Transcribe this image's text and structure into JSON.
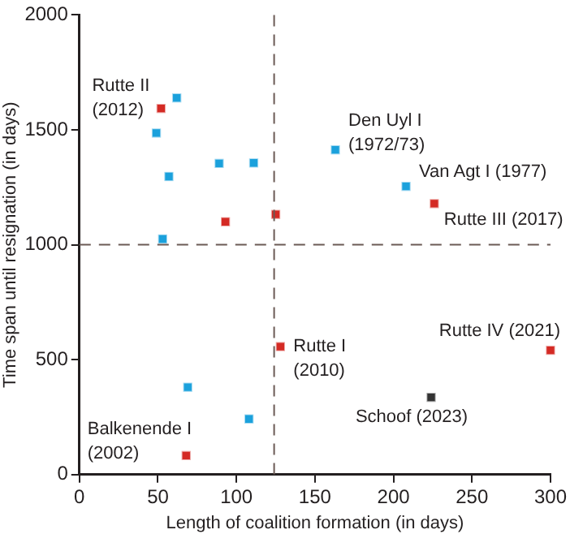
{
  "chart_data": {
    "type": "scatter",
    "xlabel": "Length of coalition formation (in days)",
    "ylabel": "Time span until resignation (in days)",
    "xlim": [
      0,
      300
    ],
    "xticks": [
      0,
      50,
      100,
      150,
      200,
      250,
      300
    ],
    "ylim": [
      0,
      2000
    ],
    "yticks": [
      0,
      500,
      1000,
      1500,
      2000
    ],
    "grid": false,
    "legend": false,
    "marker": "square",
    "series": [
      {
        "color": "#1ba1dc",
        "x": [
          62,
          49,
          57,
          89,
          111,
          53,
          163,
          208,
          69,
          108
        ],
        "values": [
          1639,
          1486,
          1297,
          1354,
          1356,
          1025,
          1413,
          1254,
          380,
          242
        ]
      },
      {
        "color": "#d42a24",
        "x": [
          52,
          93,
          125,
          226,
          128,
          300,
          68
        ],
        "values": [
          1593,
          1100,
          1132,
          1179,
          557,
          541,
          83
        ]
      },
      {
        "color": "#333333",
        "x": [
          224
        ],
        "values": [
          336
        ]
      }
    ],
    "ref_lines": [
      {
        "axis": "x",
        "value": 124,
        "color": "#6b5a55",
        "line_style": "dashed"
      },
      {
        "axis": "y",
        "value": 1000,
        "color": "#6b5a55",
        "line_style": "dashed"
      }
    ],
    "annotations": [
      {
        "text": "Rutte II (2012)",
        "x": 52,
        "y": 1593
      },
      {
        "text": "Den Uyl I (1972/73)",
        "x": 163,
        "y": 1413
      },
      {
        "text": "Van Agt I (1977)",
        "x": 208,
        "y": 1254
      },
      {
        "text": "Rutte III (2017)",
        "x": 226,
        "y": 1179
      },
      {
        "text": "Rutte I (2010)",
        "x": 128,
        "y": 557
      },
      {
        "text": "Rutte IV (2021)",
        "x": 300,
        "y": 541
      },
      {
        "text": "Schoof (2023)",
        "x": 224,
        "y": 336
      },
      {
        "text": "Balkenende I (2002)",
        "x": 68,
        "y": 83
      }
    ]
  }
}
